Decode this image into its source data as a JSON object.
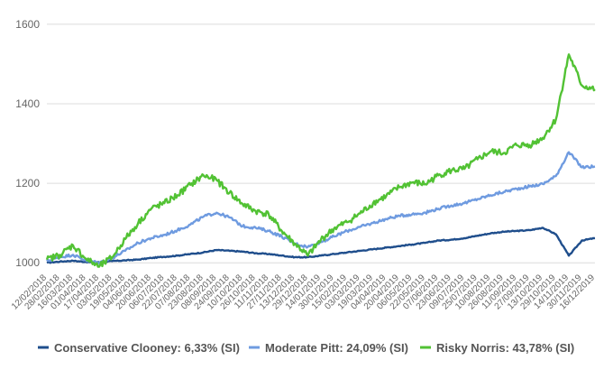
{
  "chart_data": {
    "type": "line",
    "title": "",
    "xlabel": "",
    "ylabel": "",
    "ylim": [
      980,
      1620
    ],
    "yticks": [
      1000,
      1200,
      1400,
      1600
    ],
    "y_tick_labels": [
      "1000",
      "1200",
      "1400",
      "1600"
    ],
    "grid": true,
    "legend_position": "bottom",
    "x_tick_labels": [
      "12/02/2018",
      "28/02/2018",
      "16/03/2018",
      "01/04/2018",
      "17/04/2018",
      "03/05/2018",
      "19/05/2018",
      "04/06/2018",
      "20/06/2018",
      "06/07/2018",
      "22/07/2018",
      "07/08/2018",
      "23/08/2018",
      "08/09/2018",
      "24/09/2018",
      "10/10/2018",
      "26/10/2018",
      "11/11/2018",
      "27/11/2018",
      "13/12/2018",
      "29/12/2018",
      "14/01/2019",
      "30/01/2019",
      "15/02/2019",
      "03/03/2019",
      "19/03/2019",
      "04/04/2019",
      "20/04/2019",
      "06/05/2019",
      "22/05/2019",
      "07/06/2019",
      "23/06/2019",
      "09/07/2019",
      "25/07/2019",
      "10/08/2019",
      "26/08/2019",
      "11/09/2019",
      "27/09/2019",
      "13/10/2019",
      "29/10/2019",
      "14/11/2019",
      "30/11/2019",
      "16/12/2019"
    ],
    "series": [
      {
        "name": "Conservative Clooney: 6,33% (SI)",
        "color": "#1f4e8c",
        "values": [
          1000,
          1003,
          1005,
          1002,
          1001,
          1004,
          1006,
          1008,
          1012,
          1015,
          1018,
          1022,
          1026,
          1032,
          1030,
          1028,
          1024,
          1022,
          1018,
          1014,
          1014,
          1018,
          1022,
          1026,
          1030,
          1034,
          1038,
          1042,
          1046,
          1050,
          1056,
          1058,
          1062,
          1068,
          1074,
          1078,
          1080,
          1082,
          1088,
          1072,
          1018,
          1056,
          1062
        ]
      },
      {
        "name": "Moderate Pitt: 24,09% (SI)",
        "color": "#6f9be0",
        "values": [
          1004,
          1014,
          1020,
          1006,
          1000,
          1012,
          1030,
          1050,
          1062,
          1070,
          1082,
          1096,
          1116,
          1126,
          1114,
          1092,
          1088,
          1080,
          1066,
          1048,
          1040,
          1052,
          1066,
          1080,
          1090,
          1100,
          1110,
          1118,
          1122,
          1126,
          1136,
          1144,
          1150,
          1160,
          1170,
          1178,
          1186,
          1192,
          1198,
          1218,
          1278,
          1240,
          1242
        ]
      },
      {
        "name": "Risky Norris: 43,78% (SI)",
        "color": "#52c234",
        "values": [
          1008,
          1020,
          1044,
          1010,
          990,
          1014,
          1060,
          1100,
          1136,
          1150,
          1170,
          1196,
          1220,
          1208,
          1176,
          1148,
          1130,
          1122,
          1080,
          1048,
          1018,
          1058,
          1086,
          1102,
          1124,
          1150,
          1168,
          1190,
          1202,
          1198,
          1220,
          1232,
          1236,
          1260,
          1280,
          1276,
          1296,
          1296,
          1314,
          1360,
          1524,
          1446,
          1436
        ]
      }
    ]
  }
}
